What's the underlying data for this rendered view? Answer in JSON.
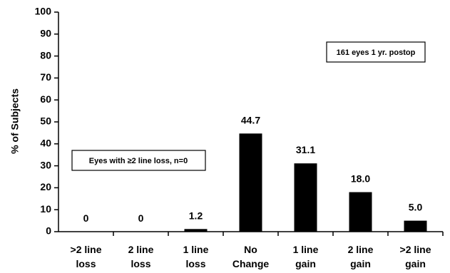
{
  "chart_data": {
    "type": "bar",
    "categories": [
      [
        "&gt;2 line",
        "loss"
      ],
      [
        "2 line",
        "loss"
      ],
      [
        "1 line",
        "loss"
      ],
      [
        "No",
        "Change"
      ],
      [
        "1 line",
        "gain"
      ],
      [
        "2 line",
        "gain"
      ],
      [
        "&gt;2 line",
        "gain"
      ]
    ],
    "values": [
      0,
      0,
      1.2,
      44.7,
      31.1,
      18.0,
      5.0
    ],
    "value_labels": [
      "0",
      "0",
      "1.2",
      "44.7",
      "31.1",
      "18.0",
      "5.0"
    ],
    "ylabel": "% of Subjects",
    "ylim": [
      0,
      100
    ],
    "yticks": [
      0,
      10,
      20,
      30,
      40,
      50,
      60,
      70,
      80,
      90,
      100
    ],
    "grid": false,
    "bar_color": "#000000",
    "annotations": [
      "161 eyes 1 yr. postop",
      "Eyes with ≥2 line loss, n=0"
    ]
  }
}
